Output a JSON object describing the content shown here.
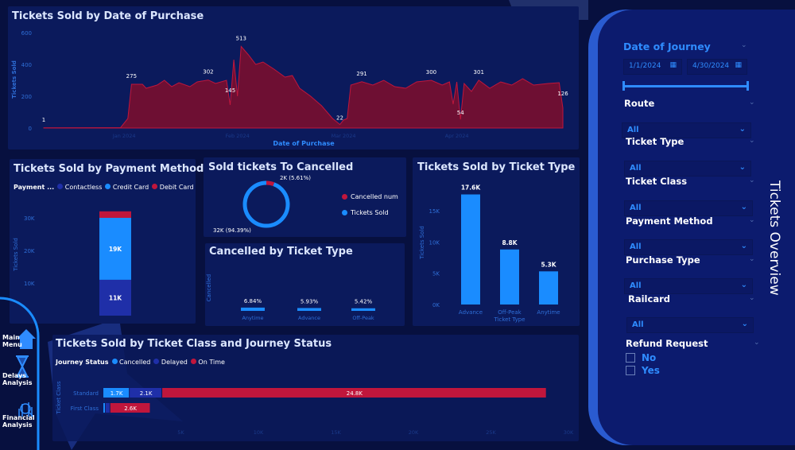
{
  "colors": {
    "background": "#07103f",
    "panel": "#0b1a5c",
    "red": "#c0163c",
    "light_blue": "#1a8cff",
    "dark_blue": "#1f2fa8",
    "axis": "#2f6fd8"
  },
  "sidebar": {
    "title": "Tickets Overview",
    "date_filter": {
      "label": "Date of Journey",
      "start": "1/1/2024",
      "end": "4/30/2024"
    },
    "filters": [
      {
        "label": "Route",
        "value": "All"
      },
      {
        "label": "Ticket Type",
        "value": "All"
      },
      {
        "label": "Ticket Class",
        "value": "All"
      },
      {
        "label": "Payment Method",
        "value": "All"
      },
      {
        "label": "Purchase Type",
        "value": "All"
      },
      {
        "label": "Railcard",
        "value": "All"
      }
    ],
    "refund": {
      "label": "Refund Request",
      "options": [
        "No",
        "Yes"
      ]
    }
  },
  "nav": {
    "items": [
      {
        "label": "Main Menu",
        "icon": "home-icon"
      },
      {
        "label": "Delays Analysis",
        "icon": "hourglass-icon"
      },
      {
        "label": "Financial Analysis",
        "icon": "finance-icon"
      }
    ]
  },
  "chart_data": [
    {
      "type": "area",
      "title": "Tickets Sold by Date of Purchase",
      "xlabel": "Date of Purchase",
      "ylabel": "Tickets Sold",
      "ylim": [
        0,
        600
      ],
      "yticks": [
        "0",
        "200",
        "400",
        "600"
      ],
      "xticks": [
        "Jan 2024",
        "Feb 2024",
        "Mar 2024",
        "Apr 2024"
      ],
      "points": [
        [
          "2023-12-10",
          1
        ],
        [
          "2023-12-31",
          2
        ],
        [
          "2024-01-02",
          60
        ],
        [
          "2024-01-03",
          275
        ],
        [
          "2024-01-06",
          275
        ],
        [
          "2024-01-07",
          250
        ],
        [
          "2024-01-10",
          270
        ],
        [
          "2024-01-12",
          300
        ],
        [
          "2024-01-14",
          260
        ],
        [
          "2024-01-16",
          285
        ],
        [
          "2024-01-19",
          260
        ],
        [
          "2024-01-21",
          290
        ],
        [
          "2024-01-24",
          302
        ],
        [
          "2024-01-26",
          280
        ],
        [
          "2024-01-29",
          300
        ],
        [
          "2024-01-30",
          145
        ],
        [
          "2024-01-31",
          430
        ],
        [
          "2024-02-01",
          200
        ],
        [
          "2024-02-02",
          513
        ],
        [
          "2024-02-04",
          460
        ],
        [
          "2024-02-06",
          400
        ],
        [
          "2024-02-08",
          415
        ],
        [
          "2024-02-11",
          370
        ],
        [
          "2024-02-14",
          320
        ],
        [
          "2024-02-16",
          330
        ],
        [
          "2024-02-18",
          250
        ],
        [
          "2024-02-21",
          200
        ],
        [
          "2024-02-24",
          140
        ],
        [
          "2024-02-27",
          60
        ],
        [
          "2024-02-29",
          22
        ],
        [
          "2024-03-01",
          50
        ],
        [
          "2024-03-02",
          60
        ],
        [
          "2024-03-03",
          270
        ],
        [
          "2024-03-06",
          291
        ],
        [
          "2024-03-09",
          270
        ],
        [
          "2024-03-12",
          300
        ],
        [
          "2024-03-15",
          260
        ],
        [
          "2024-03-18",
          250
        ],
        [
          "2024-03-21",
          290
        ],
        [
          "2024-03-25",
          300
        ],
        [
          "2024-03-28",
          270
        ],
        [
          "2024-03-30",
          290
        ],
        [
          "2024-03-31",
          150
        ],
        [
          "2024-04-01",
          290
        ],
        [
          "2024-04-02",
          54
        ],
        [
          "2024-04-03",
          280
        ],
        [
          "2024-04-05",
          230
        ],
        [
          "2024-04-07",
          301
        ],
        [
          "2024-04-10",
          250
        ],
        [
          "2024-04-13",
          290
        ],
        [
          "2024-04-16",
          270
        ],
        [
          "2024-04-19",
          310
        ],
        [
          "2024-04-22",
          270
        ],
        [
          "2024-04-26",
          280
        ],
        [
          "2024-04-29",
          285
        ],
        [
          "2024-04-30",
          126
        ]
      ],
      "data_labels": [
        [
          "2023-12-10",
          "1"
        ],
        [
          "2024-01-03",
          "275"
        ],
        [
          "2024-01-24",
          "302"
        ],
        [
          "2024-01-30",
          "145"
        ],
        [
          "2024-02-02",
          "513"
        ],
        [
          "2024-02-29",
          "22"
        ],
        [
          "2024-03-06",
          "291"
        ],
        [
          "2024-03-25",
          "300"
        ],
        [
          "2024-04-02",
          "54"
        ],
        [
          "2024-04-07",
          "301"
        ],
        [
          "2024-04-30",
          "126"
        ]
      ]
    },
    {
      "type": "bar",
      "stacked": true,
      "title": "Tickets Sold by Payment Method",
      "ylabel": "Tickets Sold",
      "legend_title": "Payment ...",
      "ylim": [
        0,
        32000
      ],
      "yticks": [
        "10K",
        "20K",
        "30K"
      ],
      "series": [
        {
          "name": "Contactless",
          "value": 11000,
          "label": "11K",
          "color": "#1f2fa8"
        },
        {
          "name": "Credit Card",
          "value": 19000,
          "label": "19K",
          "color": "#1a8cff"
        },
        {
          "name": "Debit Card",
          "value": 2000,
          "label": "",
          "color": "#c0163c"
        }
      ]
    },
    {
      "type": "pie",
      "donut": true,
      "title": "Sold tickets To Cancelled",
      "slices": [
        {
          "name": "Cancelled num",
          "percent": 5.61,
          "label": "2K (5.61%)",
          "color": "#c0163c"
        },
        {
          "name": "Tickets Sold",
          "percent": 94.39,
          "label": "32K (94.39%)",
          "color": "#1a8cff"
        }
      ]
    },
    {
      "type": "bar",
      "title": "Cancelled by Ticket Type",
      "ylabel": "Cancelled",
      "ylim": [
        0,
        100
      ],
      "categories": [
        "Anytime",
        "Advance",
        "Off-Peak"
      ],
      "values": [
        6.84,
        5.93,
        5.42
      ],
      "labels": [
        "6.84%",
        "5.93%",
        "5.42%"
      ]
    },
    {
      "type": "bar",
      "title": "Tickets Sold by Ticket Type",
      "xlabel": "Ticket Type",
      "ylabel": "Tickets Sold",
      "ylim": [
        0,
        20000
      ],
      "yticks": [
        "0K",
        "5K",
        "10K",
        "15K"
      ],
      "categories": [
        "Advance",
        "Off-Peak",
        "Anytime"
      ],
      "values": [
        17600,
        8800,
        5300
      ],
      "labels": [
        "17.6K",
        "8.8K",
        "5.3K"
      ]
    },
    {
      "type": "bar",
      "orientation": "horizontal",
      "stacked": true,
      "title": "Tickets Sold by Ticket Class and Journey Status",
      "ylabel": "Ticket Class",
      "legend_title": "Journey Status",
      "xlim": [
        0,
        30000
      ],
      "xticks": [
        "5K",
        "10K",
        "15K",
        "20K",
        "25K",
        "30K"
      ],
      "categories": [
        "Standard",
        "First Class"
      ],
      "series": [
        {
          "name": "Cancelled",
          "color": "#1a8cff",
          "values": [
            1700,
            150
          ],
          "labels": [
            "1.7K",
            ""
          ]
        },
        {
          "name": "Delayed",
          "color": "#1f2fa8",
          "values": [
            2100,
            300
          ],
          "labels": [
            "2.1K",
            ""
          ]
        },
        {
          "name": "On Time",
          "color": "#c0163c",
          "values": [
            24800,
            2600
          ],
          "labels": [
            "24.8K",
            "2.6K"
          ]
        }
      ]
    }
  ]
}
